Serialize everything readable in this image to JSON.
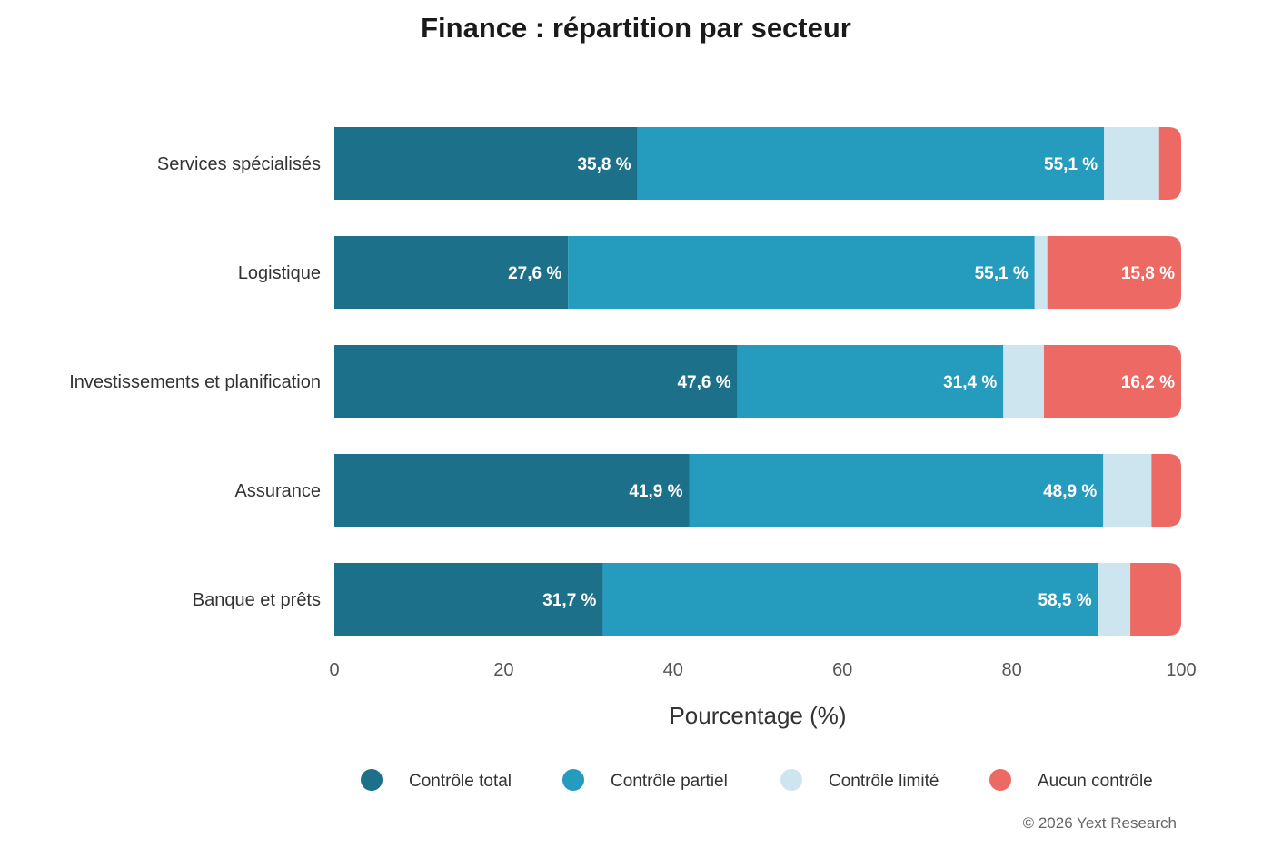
{
  "chart_data": {
    "type": "bar",
    "orientation": "horizontal",
    "stacked": true,
    "title": "Finance : répartition par secteur",
    "xlabel": "Pourcentage (%)",
    "ylabel": "",
    "xlim": [
      0,
      100
    ],
    "x_ticks": [
      "0",
      "20",
      "40",
      "60",
      "80",
      "100"
    ],
    "grid": false,
    "legend_position": "bottom",
    "categories": [
      "Services spécialisés",
      "Logistique",
      "Investissements et planification",
      "Assurance",
      "Banque et prêts"
    ],
    "series": [
      {
        "name": "Contrôle total",
        "color": "#1d7089",
        "values": [
          35.8,
          27.6,
          47.6,
          41.9,
          31.7
        ],
        "labels": [
          "35,8 %",
          "27,6 %",
          "47,6 %",
          "41,9 %",
          "31,7 %"
        ]
      },
      {
        "name": "Contrôle partiel",
        "color": "#259bbd",
        "values": [
          55.1,
          55.1,
          31.4,
          48.9,
          58.5
        ],
        "labels": [
          "55,1 %",
          "55,1 %",
          "31,4 %",
          "48,9 %",
          "58,5 %"
        ]
      },
      {
        "name": "Contrôle limité",
        "color": "#cde5ee",
        "values": [
          6.5,
          1.5,
          4.8,
          5.7,
          3.8
        ],
        "labels": [
          "",
          "",
          "",
          "",
          ""
        ]
      },
      {
        "name": "Aucun contrôle",
        "color": "#ed6963",
        "values": [
          2.6,
          15.8,
          16.2,
          3.5,
          6.0
        ],
        "labels": [
          "",
          "15,8 %",
          "16,2 %",
          "",
          ""
        ]
      }
    ]
  },
  "footer": {
    "credit": "© 2026 Yext Research"
  }
}
